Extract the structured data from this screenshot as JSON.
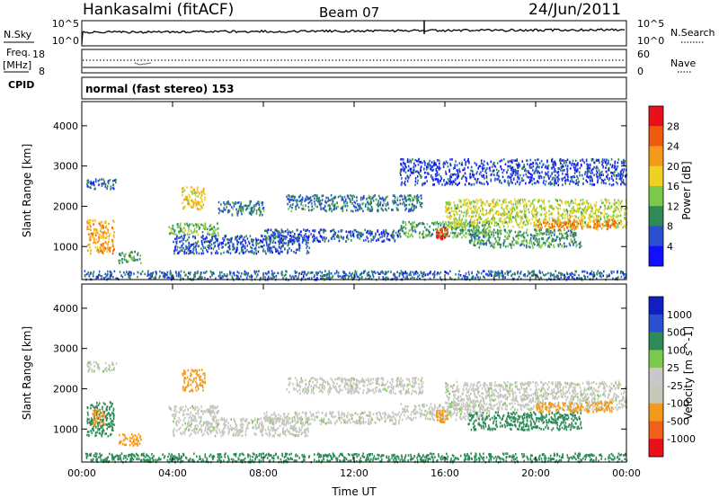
{
  "header": {
    "station": "Hankasalmi (fitACF)",
    "beam": "Beam 07",
    "date": "24/Jun/2011"
  },
  "noise_panel": {
    "left_label": "N.Sky",
    "left_ticks": [
      "10^5",
      "10^0"
    ],
    "right_label": "N.Search",
    "right_ticks": [
      "10^5",
      "10^0"
    ]
  },
  "freq_panel": {
    "left_label_line1": "Freq.",
    "left_label_line2": "[MHz]",
    "left_ticks": [
      "18",
      "8"
    ],
    "right_label": "Nave",
    "right_ticks": [
      "60",
      "0"
    ],
    "cpid_label": "CPID"
  },
  "cpid": {
    "text": "normal (fast stereo) 153"
  },
  "colors": {
    "power_scale": [
      "#1010ff",
      "#2a4fd0",
      "#2e8b57",
      "#7cc84a",
      "#f0d020",
      "#f39a1a",
      "#f05a10",
      "#e8101a"
    ],
    "velocity_scale": [
      "#e8101a",
      "#f06018",
      "#f39a1a",
      "#c8c8b8",
      "#c8c8c8",
      "#7cc84a",
      "#2e8b57",
      "#2a4fd0",
      "#1020c0"
    ],
    "ground_scatter": "#c6c6c0"
  },
  "chart_data": [
    {
      "type": "heatmap",
      "title": "",
      "xlabel": "",
      "ylabel": "Slant Range [km]",
      "x_ticks": [
        "00:00",
        "04:00",
        "08:00",
        "12:00",
        "16:00",
        "20:00",
        "00:00"
      ],
      "y_ticks": [
        "1000",
        "2000",
        "3000",
        "4000"
      ],
      "x_range_hours": [
        0,
        24
      ],
      "ylim": [
        180,
        4600
      ],
      "colorbar": {
        "label": "Power [dB]",
        "ticks": [
          "28",
          "24",
          "20",
          "16",
          "12",
          "8",
          "4"
        ],
        "range": [
          0,
          30
        ]
      },
      "echo_regions": [
        {
          "t_start": 0.1,
          "t_end": 24.0,
          "r_start": 200,
          "r_end": 420,
          "value": 7
        },
        {
          "t_start": 0.2,
          "t_end": 1.4,
          "r_start": 850,
          "r_end": 1700,
          "value": 20
        },
        {
          "t_start": 1.6,
          "t_end": 2.6,
          "r_start": 600,
          "r_end": 900,
          "value": 11
        },
        {
          "t_start": 4.0,
          "t_end": 10.0,
          "r_start": 850,
          "r_end": 1300,
          "value": 6
        },
        {
          "t_start": 3.8,
          "t_end": 6.0,
          "r_start": 1300,
          "r_end": 1600,
          "value": 12
        },
        {
          "t_start": 4.4,
          "t_end": 5.4,
          "r_start": 1950,
          "r_end": 2500,
          "value": 17
        },
        {
          "t_start": 6.0,
          "t_end": 8.0,
          "r_start": 1800,
          "r_end": 2150,
          "value": 8
        },
        {
          "t_start": 8.0,
          "t_end": 14.0,
          "r_start": 1150,
          "r_end": 1450,
          "value": 6
        },
        {
          "t_start": 9.0,
          "t_end": 15.0,
          "r_start": 1900,
          "r_end": 2300,
          "value": 8
        },
        {
          "t_start": 14.0,
          "t_end": 18.0,
          "r_start": 1250,
          "r_end": 1650,
          "value": 11
        },
        {
          "t_start": 15.6,
          "t_end": 16.1,
          "r_start": 1200,
          "r_end": 1500,
          "value": 26
        },
        {
          "t_start": 16.0,
          "t_end": 24.0,
          "r_start": 1500,
          "r_end": 2200,
          "value": 15
        },
        {
          "t_start": 17.0,
          "t_end": 22.0,
          "r_start": 1000,
          "r_end": 1450,
          "value": 10
        },
        {
          "t_start": 20.0,
          "t_end": 23.5,
          "r_start": 1450,
          "r_end": 1700,
          "value": 22
        },
        {
          "t_start": 0.2,
          "t_end": 1.5,
          "r_start": 2450,
          "r_end": 2700,
          "value": 6
        },
        {
          "t_start": 14.0,
          "t_end": 24.0,
          "r_start": 2550,
          "r_end": 3200,
          "value": 5
        }
      ]
    },
    {
      "type": "heatmap",
      "title": "",
      "xlabel": "Time UT",
      "ylabel": "Slant Range [km]",
      "x_ticks": [
        "00:00",
        "04:00",
        "08:00",
        "12:00",
        "16:00",
        "20:00",
        "00:00"
      ],
      "y_ticks": [
        "1000",
        "2000",
        "3000",
        "4000"
      ],
      "x_range_hours": [
        0,
        24
      ],
      "ylim": [
        180,
        4600
      ],
      "colorbar": {
        "label": "Velocity [m s^-1]",
        "ticks": [
          "1000",
          "500",
          "100",
          "25",
          "-25",
          "-100",
          "-500",
          "-1000"
        ],
        "range": [
          -1000,
          1000
        ]
      },
      "echo_regions": [
        {
          "t_start": 0.1,
          "t_end": 24.0,
          "r_start": 200,
          "r_end": 420,
          "value": 150
        },
        {
          "t_start": 0.2,
          "t_end": 1.4,
          "r_start": 850,
          "r_end": 1700,
          "value": 250
        },
        {
          "t_start": 0.4,
          "t_end": 1.0,
          "r_start": 1100,
          "r_end": 1500,
          "value": -400
        },
        {
          "t_start": 1.6,
          "t_end": 2.6,
          "r_start": 600,
          "r_end": 900,
          "value": -150
        },
        {
          "t_start": 4.0,
          "t_end": 10.0,
          "r_start": 850,
          "r_end": 1300,
          "value": 0
        },
        {
          "t_start": 3.8,
          "t_end": 6.0,
          "r_start": 1300,
          "r_end": 1600,
          "value": 0
        },
        {
          "t_start": 4.4,
          "t_end": 5.4,
          "r_start": 1950,
          "r_end": 2500,
          "value": -200
        },
        {
          "t_start": 8.0,
          "t_end": 14.0,
          "r_start": 1150,
          "r_end": 1450,
          "value": 0
        },
        {
          "t_start": 9.0,
          "t_end": 15.0,
          "r_start": 1900,
          "r_end": 2300,
          "value": 0
        },
        {
          "t_start": 14.0,
          "t_end": 18.0,
          "r_start": 1250,
          "r_end": 1650,
          "value": 0
        },
        {
          "t_start": 15.6,
          "t_end": 16.1,
          "r_start": 1200,
          "r_end": 1500,
          "value": -300
        },
        {
          "t_start": 16.0,
          "t_end": 24.0,
          "r_start": 1500,
          "r_end": 2200,
          "value": 0
        },
        {
          "t_start": 17.0,
          "t_end": 22.0,
          "r_start": 1000,
          "r_end": 1450,
          "value": 200
        },
        {
          "t_start": 20.0,
          "t_end": 23.5,
          "r_start": 1450,
          "r_end": 1700,
          "value": -150
        },
        {
          "t_start": 0.2,
          "t_end": 1.5,
          "r_start": 2450,
          "r_end": 2700,
          "value": 0
        }
      ]
    }
  ]
}
